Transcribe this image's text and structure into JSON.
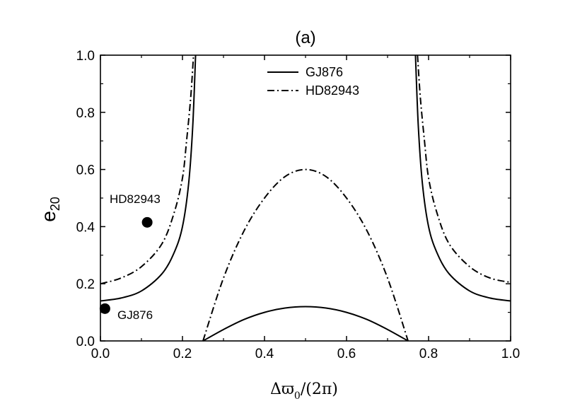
{
  "chart_data": {
    "type": "line",
    "title": "(a)",
    "xlabel": "Δϖ₀/(2π)",
    "xlabel_parts": {
      "main": "Δϖ",
      "sub": "0",
      "rest": "/(2π)"
    },
    "ylabel_parts": {
      "main": "e",
      "sub": "20"
    },
    "xlim": [
      0.0,
      1.0
    ],
    "ylim": [
      0.0,
      1.0
    ],
    "xticks": [
      "0.0",
      "0.2",
      "0.4",
      "0.6",
      "0.8",
      "1.0"
    ],
    "yticks": [
      "0.0",
      "0.2",
      "0.4",
      "0.6",
      "0.8",
      "1.0"
    ],
    "grid": false,
    "legend_position": "top-center",
    "series": [
      {
        "name": "GJ876",
        "style": "solid",
        "outer_left": {
          "x": [
            0.0,
            0.05,
            0.1,
            0.15,
            0.18,
            0.2,
            0.215,
            0.225,
            0.232
          ],
          "y": [
            0.14,
            0.15,
            0.175,
            0.235,
            0.31,
            0.4,
            0.55,
            0.75,
            1.0
          ]
        },
        "outer_right": {
          "x": [
            0.768,
            0.775,
            0.785,
            0.8,
            0.82,
            0.85,
            0.9,
            0.95,
            1.0
          ],
          "y": [
            1.0,
            0.75,
            0.55,
            0.4,
            0.31,
            0.235,
            0.175,
            0.15,
            0.14
          ]
        },
        "inner": {
          "x": [
            0.25,
            0.3,
            0.35,
            0.4,
            0.45,
            0.5,
            0.55,
            0.6,
            0.65,
            0.7,
            0.75
          ],
          "y": [
            0.0,
            0.04,
            0.075,
            0.1,
            0.115,
            0.12,
            0.115,
            0.1,
            0.075,
            0.04,
            0.0
          ]
        }
      },
      {
        "name": "HD82943",
        "style": "dashdot",
        "outer_left": {
          "x": [
            0.0,
            0.05,
            0.1,
            0.15,
            0.18,
            0.2,
            0.21,
            0.22,
            0.227
          ],
          "y": [
            0.2,
            0.22,
            0.26,
            0.34,
            0.45,
            0.57,
            0.7,
            0.85,
            1.0
          ]
        },
        "outer_right": {
          "x": [
            0.773,
            0.78,
            0.79,
            0.8,
            0.82,
            0.85,
            0.9,
            0.95,
            1.0
          ],
          "y": [
            1.0,
            0.85,
            0.7,
            0.57,
            0.45,
            0.34,
            0.26,
            0.22,
            0.205
          ]
        },
        "inner": {
          "x": [
            0.25,
            0.3,
            0.35,
            0.4,
            0.45,
            0.5,
            0.55,
            0.6,
            0.65,
            0.7,
            0.75
          ],
          "y": [
            0.0,
            0.22,
            0.385,
            0.5,
            0.575,
            0.6,
            0.575,
            0.5,
            0.385,
            0.22,
            0.0
          ]
        }
      }
    ],
    "points": [
      {
        "label": "HD82943",
        "x": 0.114,
        "y": 0.415
      },
      {
        "label": "GJ876",
        "x": 0.011,
        "y": 0.113
      }
    ]
  }
}
